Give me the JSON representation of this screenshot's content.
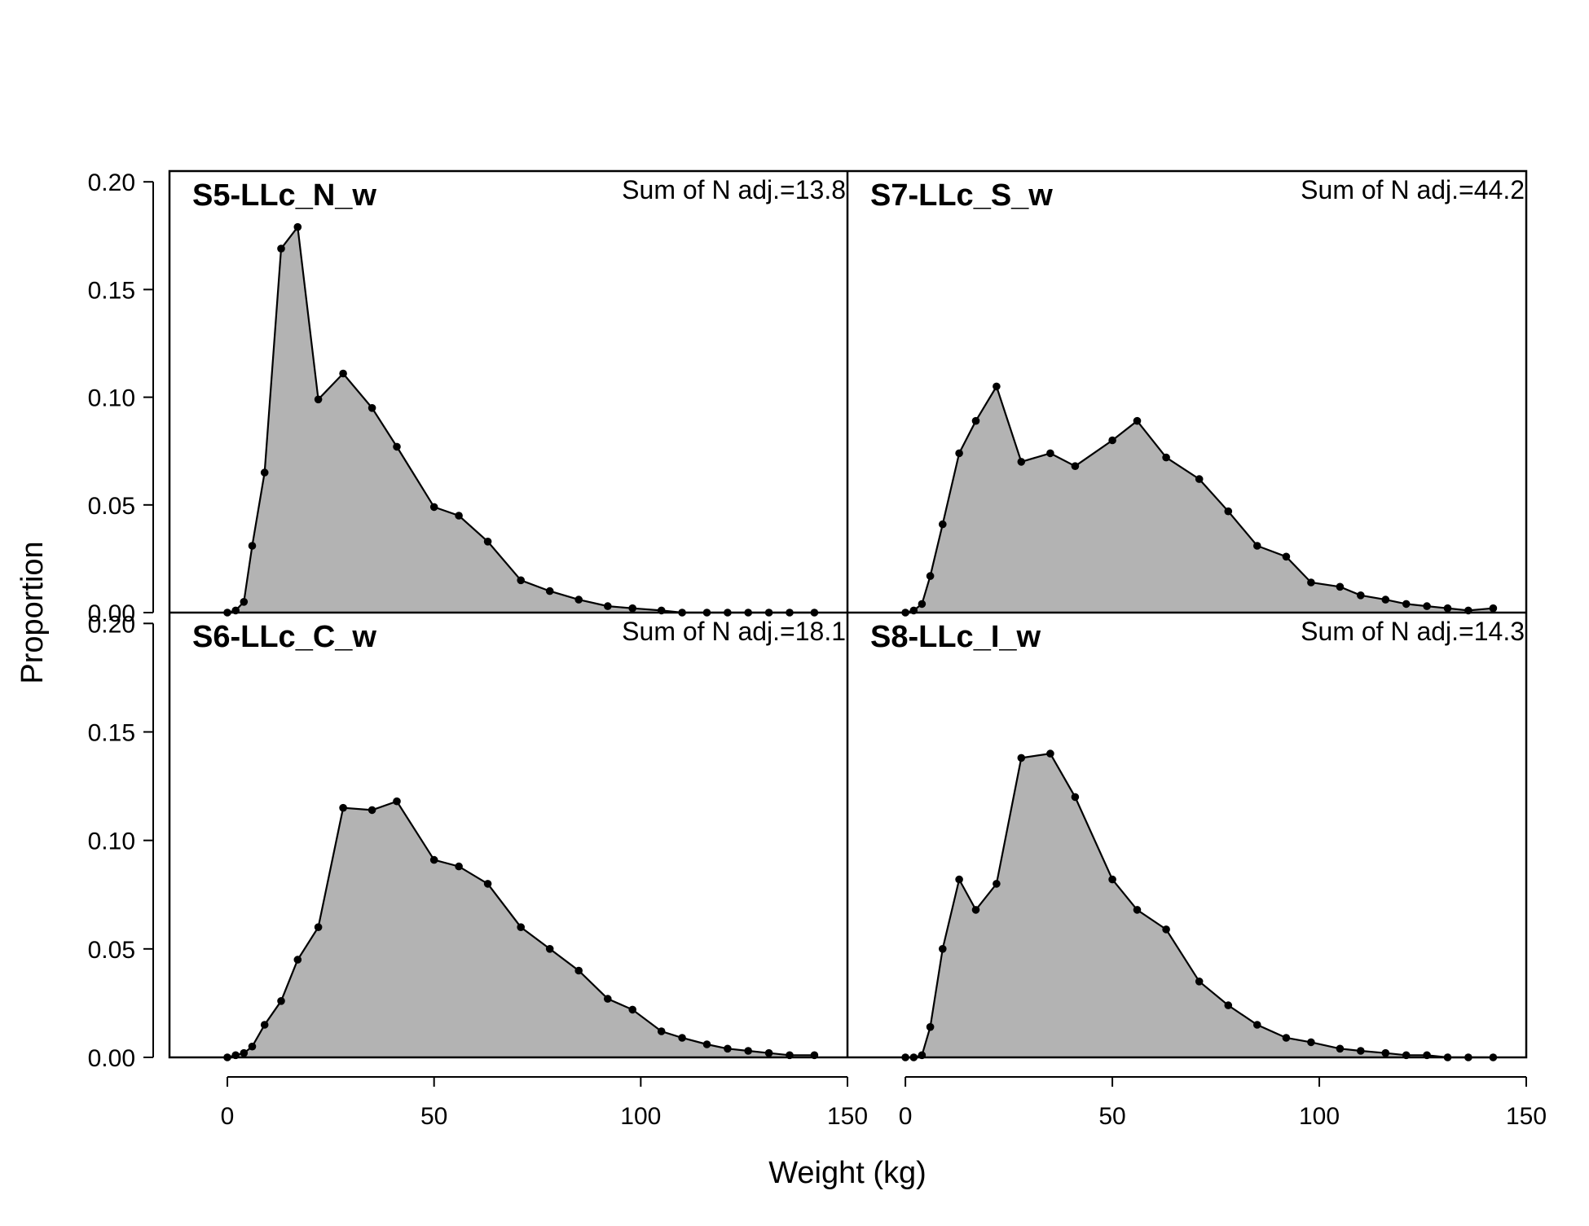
{
  "chart_data": {
    "type": "area",
    "xlabel": "Weight (kg)",
    "ylabel": "Proportion",
    "xlim": [
      -14,
      150
    ],
    "ylim": [
      0,
      0.205
    ],
    "x_ticks": [
      "0",
      "50",
      "100",
      "150"
    ],
    "y_ticks": [
      "0.00",
      "0.05",
      "0.10",
      "0.15",
      "0.20"
    ],
    "fill_color": "#b3b3b3",
    "line_color": "#000000",
    "x": [
      0,
      2,
      4,
      6,
      9,
      13,
      17,
      22,
      28,
      35,
      41,
      50,
      56,
      63,
      71,
      78,
      85,
      92,
      98,
      105,
      110,
      116,
      121,
      126,
      131,
      136,
      142
    ],
    "panels": [
      {
        "title": "S5-LLc_N_w",
        "note": "Sum of N adj.=13.8",
        "values": [
          0.0,
          0.001,
          0.005,
          0.031,
          0.065,
          0.169,
          0.179,
          0.099,
          0.111,
          0.095,
          0.077,
          0.049,
          0.045,
          0.033,
          0.015,
          0.01,
          0.006,
          0.003,
          0.002,
          0.001,
          0.0,
          0.0,
          0.0,
          0.0,
          0.0,
          0.0,
          0.0
        ]
      },
      {
        "title": "S7-LLc_S_w",
        "note": "Sum of N adj.=44.2",
        "values": [
          0.0,
          0.001,
          0.004,
          0.017,
          0.041,
          0.074,
          0.089,
          0.105,
          0.07,
          0.074,
          0.068,
          0.08,
          0.089,
          0.072,
          0.062,
          0.047,
          0.031,
          0.026,
          0.014,
          0.012,
          0.008,
          0.006,
          0.004,
          0.003,
          0.002,
          0.001,
          0.002
        ]
      },
      {
        "title": "S6-LLc_C_w",
        "note": "Sum of N adj.=18.1",
        "values": [
          0.0,
          0.001,
          0.002,
          0.005,
          0.015,
          0.026,
          0.045,
          0.06,
          0.115,
          0.114,
          0.118,
          0.091,
          0.088,
          0.08,
          0.06,
          0.05,
          0.04,
          0.027,
          0.022,
          0.012,
          0.009,
          0.006,
          0.004,
          0.003,
          0.002,
          0.001,
          0.001
        ]
      },
      {
        "title": "S8-LLc_I_w",
        "note": "Sum of N adj.=14.3",
        "values": [
          0.0,
          0.0,
          0.001,
          0.014,
          0.05,
          0.082,
          0.068,
          0.08,
          0.138,
          0.14,
          0.12,
          0.082,
          0.068,
          0.059,
          0.035,
          0.024,
          0.015,
          0.009,
          0.007,
          0.004,
          0.003,
          0.002,
          0.001,
          0.001,
          0.0,
          0.0,
          0.0
        ]
      }
    ]
  }
}
